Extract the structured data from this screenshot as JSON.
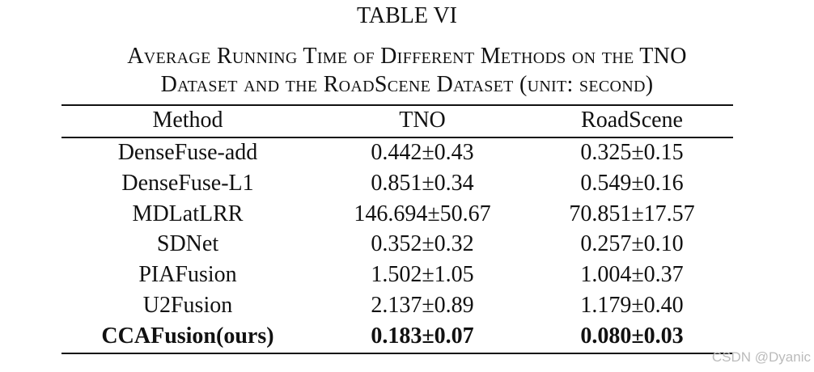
{
  "title": "TABLE VI",
  "caption": [
    "Average Running Time of Different Methods on the TNO",
    "Dataset and the RoadScene Dataset (unit: second)"
  ],
  "table": {
    "header": [
      "Method",
      "TNO",
      "RoadScene"
    ],
    "rows": [
      [
        "DenseFuse-add",
        "0.442±0.43",
        "0.325±0.15"
      ],
      [
        "DenseFuse-L1",
        "0.851±0.34",
        "0.549±0.16"
      ],
      [
        "MDLatLRR",
        "146.694±50.67",
        "70.851±17.57"
      ],
      [
        "SDNet",
        "0.352±0.32",
        "0.257±0.10"
      ],
      [
        "PIAFusion",
        "1.502±1.05",
        "1.004±0.37"
      ],
      [
        "U2Fusion",
        "2.137±0.89",
        "1.179±0.40"
      ],
      [
        "CCAFusion(ours)",
        "0.183±0.07",
        "0.080±0.03"
      ]
    ]
  },
  "watermark": "CSDN @Dyanic"
}
